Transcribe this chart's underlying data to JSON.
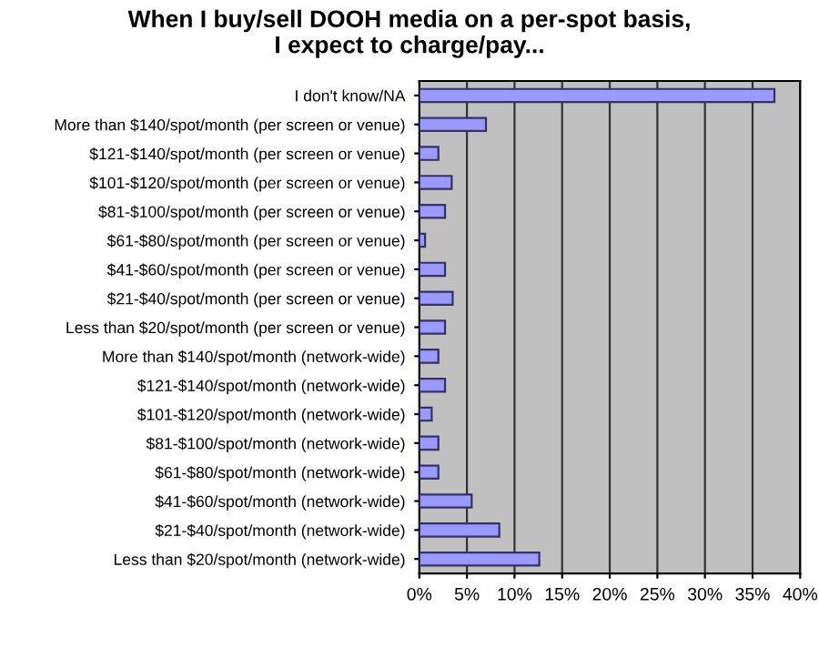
{
  "chart_data": {
    "type": "bar",
    "orientation": "horizontal",
    "title": "When I buy/sell DOOH media on a per-spot basis,\nI expect to charge/pay...",
    "categories": [
      "I don't know/NA",
      "More than $140/spot/month (per screen or venue)",
      "$121-$140/spot/month (per screen or venue)",
      "$101-$120/spot/month (per screen or venue)",
      "$81-$100/spot/month (per screen or venue)",
      "$61-$80/spot/month (per screen or venue)",
      "$41-$60/spot/month (per screen or venue)",
      "$21-$40/spot/month (per screen or venue)",
      "Less than $20/spot/month (per screen or venue)",
      "More than $140/spot/month (network-wide)",
      "$121-$140/spot/month (network-wide)",
      "$101-$120/spot/month (network-wide)",
      "$81-$100/spot/month (network-wide)",
      "$61-$80/spot/month (network-wide)",
      "$41-$60/spot/month (network-wide)",
      "$21-$40/spot/month (network-wide)",
      "Less than $20/spot/month (network-wide)"
    ],
    "values": [
      37.3,
      7.0,
      2.0,
      3.4,
      2.7,
      0.6,
      2.7,
      3.5,
      2.7,
      2.0,
      2.7,
      1.3,
      2.0,
      2.0,
      5.5,
      8.4,
      12.6
    ],
    "color": "#9999ff",
    "xlim": [
      0,
      40
    ],
    "xticks": [
      {
        "value": 0,
        "label": "0%"
      },
      {
        "value": 5,
        "label": "5%"
      },
      {
        "value": 10,
        "label": "10%"
      },
      {
        "value": 15,
        "label": "15%"
      },
      {
        "value": 20,
        "label": "20%"
      },
      {
        "value": 25,
        "label": "25%"
      },
      {
        "value": 30,
        "label": "30%"
      },
      {
        "value": 35,
        "label": "35%"
      },
      {
        "value": 40,
        "label": "40%"
      }
    ],
    "grid": "x"
  }
}
